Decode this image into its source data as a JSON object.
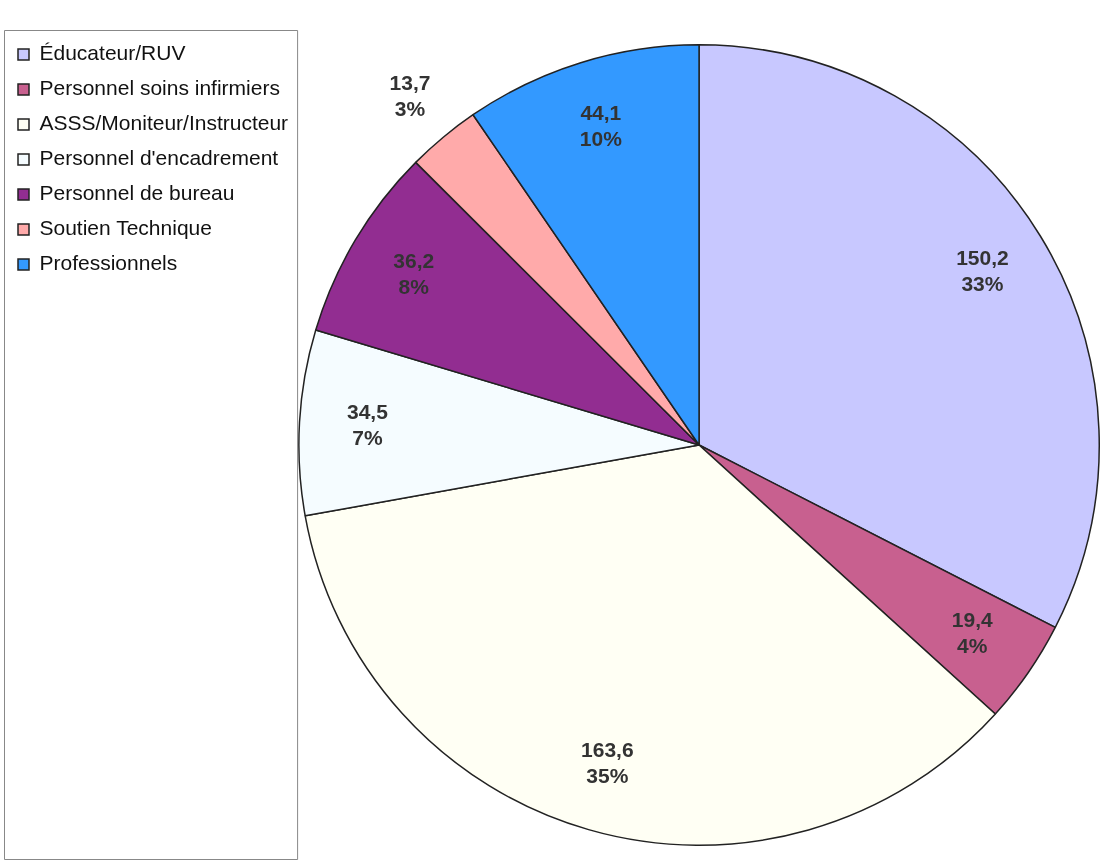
{
  "chart_data": {
    "type": "pie",
    "categories": [
      "Éducateur/RUV",
      "Personnel soins infirmiers",
      "ASSS/Moniteur/Instructeur",
      "Personnel d'encadrement",
      "Personnel de bureau",
      "Soutien Technique",
      "Professionnels"
    ],
    "values": [
      150.2,
      19.4,
      163.6,
      34.5,
      36.2,
      13.7,
      44.1
    ],
    "colors": [
      "#c8c8ff",
      "#c8608f",
      "#fffff4",
      "#f5fcff",
      "#922d91",
      "#ffaaaa",
      "#3399ff"
    ],
    "value_labels": [
      "150,2\n33%",
      "19,4\n4%",
      "163,6\n35%",
      "34,5\n7%",
      "36,2\n8%",
      "13,7\n3%",
      "44,1\n10%"
    ],
    "legend": "top left"
  }
}
